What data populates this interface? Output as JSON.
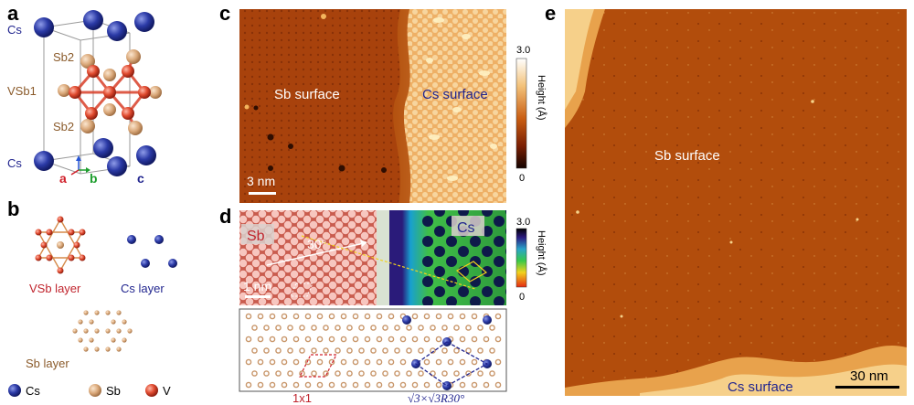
{
  "colors": {
    "cs": "#1f2c8f",
    "sb": "#c8966a",
    "v": "#d9402a",
    "red_text": "#c0242d",
    "blue_text": "#22268f",
    "stm_dark": "#9c3a07",
    "stm_bright": "#f6c873"
  },
  "panel_a": {
    "label": "a",
    "atoms": {
      "cs_top": "Cs",
      "sb2_top": "Sb2",
      "vsb1": "VSb1",
      "sb2_bottom": "Sb2",
      "cs_bottom": "Cs"
    },
    "axes": {
      "a": "a",
      "b": "b",
      "c": "c"
    }
  },
  "panel_b": {
    "label": "b",
    "layers": {
      "vsb": "VSb layer",
      "cs": "Cs layer",
      "sb": "Sb layer"
    },
    "legend": [
      {
        "name": "Cs",
        "color": "#1f2c8f"
      },
      {
        "name": "Sb",
        "color": "#c8966a"
      },
      {
        "name": "V",
        "color": "#d9402a"
      }
    ]
  },
  "panel_c": {
    "label": "c",
    "sb_surface": "Sb surface",
    "cs_surface": "Cs surface",
    "scale": "3 nm",
    "colorbar": {
      "title": "Height (Å)",
      "max": "3.0",
      "min": "0"
    }
  },
  "panel_d": {
    "label": "d",
    "sb_tag": "Sb",
    "cs_tag": "Cs",
    "angle": "30°",
    "scale": "1 nm",
    "colorbar": {
      "title": "Height (Å)",
      "max": "3.0",
      "min": "0"
    },
    "cell_1x1": "1x1",
    "cell_root3": "√3×√3R30°"
  },
  "panel_e": {
    "label": "e",
    "sb_surface": "Sb surface",
    "cs_surface": "Cs surface",
    "scale": "30 nm"
  }
}
